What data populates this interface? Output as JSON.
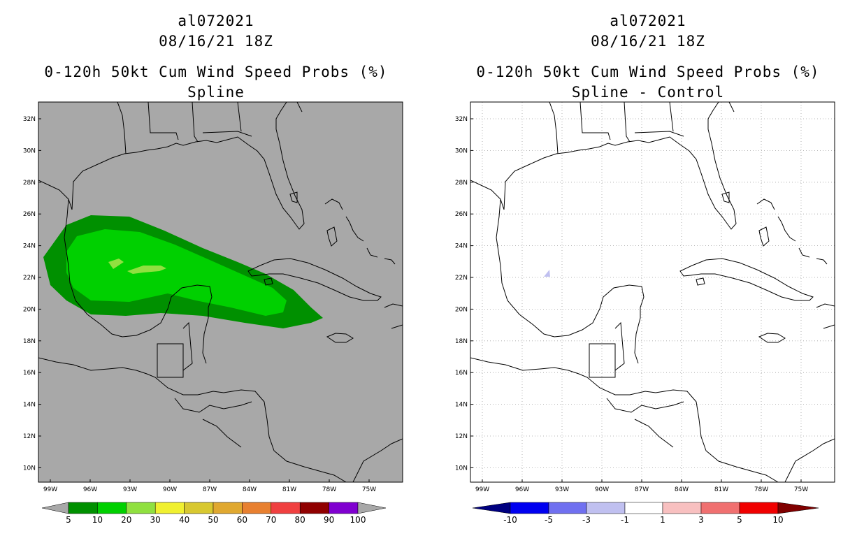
{
  "left": {
    "storm_id": "al072021",
    "datetime": "08/16/21 18Z",
    "product": "0-120h 50kt Cum Wind Speed Probs (%)",
    "variant": "Spline",
    "colorbar": {
      "labels": [
        "5",
        "10",
        "20",
        "30",
        "40",
        "50",
        "60",
        "70",
        "80",
        "90",
        "100"
      ],
      "colors": [
        "#009000",
        "#00d000",
        "#90e040",
        "#f0f030",
        "#d8c830",
        "#e0a830",
        "#e88030",
        "#f04040",
        "#900000",
        "#8000d0"
      ]
    }
  },
  "right": {
    "storm_id": "al072021",
    "datetime": "08/16/21 18Z",
    "product": "0-120h 50kt Cum Wind Speed Probs (%)",
    "variant": "Spline - Control",
    "colorbar": {
      "labels": [
        "-10",
        "-5",
        "-3",
        "-1",
        "1",
        "3",
        "5",
        "10"
      ],
      "colors": [
        "#000080",
        "#0000f0",
        "#7070f0",
        "#c0c0f0",
        "#ffffff",
        "#f8c0c0",
        "#f07070",
        "#f00000",
        "#800000"
      ]
    }
  },
  "map": {
    "lat_ticks": [
      "32N",
      "30N",
      "28N",
      "26N",
      "24N",
      "22N",
      "20N",
      "18N",
      "16N",
      "14N",
      "12N",
      "10N"
    ],
    "lon_ticks": [
      "99W",
      "96W",
      "93W",
      "90W",
      "87W",
      "84W",
      "81W",
      "78W",
      "75W"
    ],
    "background_color": "#a8a8a8",
    "prob_colors": {
      "ring_5": "#009000",
      "ring_10": "#00d000",
      "ring_20": "#90e040"
    },
    "diff_color": "#c0c0f0"
  }
}
